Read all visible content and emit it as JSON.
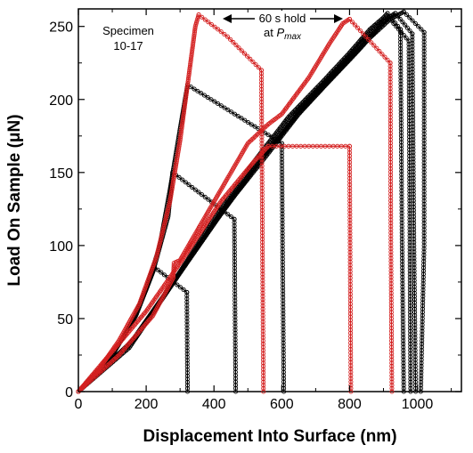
{
  "chart_data": {
    "type": "scatter",
    "title": "",
    "xlabel": "Displacement Into Surface (nm)",
    "ylabel": "Load On Sample (μN)",
    "xlim": [
      0,
      1130
    ],
    "ylim": [
      0,
      262
    ],
    "x_ticks": [
      0,
      200,
      400,
      600,
      800,
      1000
    ],
    "y_ticks": [
      0,
      50,
      100,
      150,
      200,
      250
    ],
    "grid": false,
    "legend": "none",
    "annotations": {
      "specimen_line1": "Specimen",
      "specimen_line2": "10-17",
      "hold_line1": "60 s hold",
      "hold_line2_prefix": "at ",
      "hold_line2_var": "P",
      "hold_line2_sub": "max"
    },
    "colors": {
      "red_series": "#d42020",
      "black_series": "#000000"
    },
    "series": [
      {
        "color": "#d42020",
        "loading": [
          [
            0,
            0
          ],
          [
            60,
            15
          ],
          [
            120,
            35
          ],
          [
            180,
            60
          ],
          [
            230,
            92
          ],
          [
            270,
            130
          ],
          [
            300,
            172
          ],
          [
            325,
            215
          ],
          [
            345,
            250
          ],
          [
            355,
            258
          ]
        ],
        "hold": [
          [
            355,
            258
          ],
          [
            440,
            243
          ],
          [
            540,
            220
          ]
        ],
        "unloading": [
          [
            540,
            220
          ],
          [
            543,
            100
          ],
          [
            546,
            0
          ]
        ]
      },
      {
        "color": "#000000",
        "loading": [
          [
            0,
            0
          ],
          [
            100,
            25
          ],
          [
            160,
            48
          ],
          [
            200,
            70
          ],
          [
            240,
            100
          ],
          [
            270,
            138
          ],
          [
            300,
            180
          ],
          [
            322,
            210
          ]
        ],
        "hold": [
          [
            322,
            210
          ],
          [
            600,
            170
          ]
        ],
        "unloading": [
          [
            600,
            170
          ],
          [
            603,
            80
          ],
          [
            606,
            0
          ]
        ]
      },
      {
        "color": "#000000",
        "loading": [
          [
            0,
            0
          ],
          [
            100,
            25
          ],
          [
            170,
            52
          ],
          [
            220,
            82
          ],
          [
            265,
            120
          ],
          [
            278,
            150
          ]
        ],
        "hold": [
          [
            278,
            150
          ],
          [
            460,
            118
          ]
        ],
        "unloading": [
          [
            460,
            118
          ],
          [
            462,
            60
          ],
          [
            464,
            0
          ]
        ]
      },
      {
        "color": "#000000",
        "loading": [
          [
            0,
            0
          ],
          [
            100,
            25
          ],
          [
            160,
            48
          ],
          [
            200,
            70
          ],
          [
            225,
            85
          ]
        ],
        "hold": [
          [
            225,
            85
          ],
          [
            320,
            68
          ]
        ],
        "unloading": [
          [
            320,
            68
          ],
          [
            321,
            30
          ],
          [
            322,
            0
          ]
        ]
      },
      {
        "color": "#d42020",
        "loading": [
          [
            0,
            0
          ],
          [
            120,
            25
          ],
          [
            220,
            52
          ],
          [
            280,
            78
          ],
          [
            282,
            88
          ],
          [
            300,
            90
          ],
          [
            400,
            130
          ],
          [
            500,
            170
          ],
          [
            560,
            183
          ],
          [
            600,
            190
          ],
          [
            680,
            215
          ],
          [
            740,
            238
          ],
          [
            780,
            252
          ],
          [
            800,
            255
          ]
        ],
        "hold": [
          [
            800,
            255
          ],
          [
            920,
            225
          ]
        ],
        "unloading": [
          [
            920,
            225
          ],
          [
            922,
            100
          ],
          [
            925,
            0
          ]
        ]
      },
      {
        "color": "#d42020",
        "loading": [
          [
            0,
            0
          ],
          [
            200,
            55
          ],
          [
            300,
            88
          ],
          [
            420,
            130
          ],
          [
            520,
            158
          ],
          [
            560,
            168
          ]
        ],
        "hold": [
          [
            560,
            168
          ],
          [
            800,
            168
          ]
        ],
        "unloading": [
          [
            800,
            168
          ],
          [
            802,
            80
          ],
          [
            804,
            0
          ]
        ]
      },
      {
        "color": "#000000",
        "loading": [
          [
            0,
            0
          ],
          [
            150,
            32
          ],
          [
            280,
            75
          ],
          [
            400,
            118
          ],
          [
            520,
            158
          ],
          [
            620,
            188
          ],
          [
            720,
            212
          ],
          [
            800,
            232
          ],
          [
            860,
            248
          ],
          [
            900,
            256
          ],
          [
            912,
            259
          ]
        ],
        "hold": [
          [
            912,
            259
          ],
          [
            950,
            248
          ]
        ],
        "unloading": [
          [
            950,
            248
          ],
          [
            955,
            100
          ],
          [
            960,
            0
          ]
        ]
      },
      {
        "color": "#000000",
        "loading": [
          [
            0,
            0
          ],
          [
            160,
            35
          ],
          [
            300,
            82
          ],
          [
            420,
            122
          ],
          [
            540,
            160
          ],
          [
            640,
            190
          ],
          [
            740,
            215
          ],
          [
            830,
            238
          ],
          [
            900,
            254
          ],
          [
            935,
            259
          ]
        ],
        "hold": [
          [
            935,
            259
          ],
          [
            985,
            245
          ]
        ],
        "unloading": [
          [
            985,
            245
          ],
          [
            990,
            100
          ],
          [
            995,
            0
          ]
        ]
      },
      {
        "color": "#000000",
        "loading": [
          [
            0,
            0
          ],
          [
            170,
            37
          ],
          [
            320,
            88
          ],
          [
            440,
            128
          ],
          [
            560,
            163
          ],
          [
            660,
            193
          ],
          [
            760,
            218
          ],
          [
            850,
            240
          ],
          [
            920,
            255
          ],
          [
            960,
            260
          ]
        ],
        "hold": [
          [
            960,
            260
          ],
          [
            1020,
            246
          ]
        ],
        "unloading": [
          [
            1020,
            246
          ],
          [
            1020,
            100
          ],
          [
            1010,
            0
          ]
        ]
      },
      {
        "color": "#000000",
        "loading": [
          [
            0,
            0
          ],
          [
            150,
            30
          ],
          [
            290,
            78
          ],
          [
            410,
            118
          ],
          [
            530,
            156
          ],
          [
            630,
            185
          ],
          [
            730,
            210
          ],
          [
            820,
            232
          ],
          [
            890,
            250
          ],
          [
            915,
            256
          ]
        ],
        "hold": [
          [
            915,
            256
          ],
          [
            975,
            240
          ]
        ],
        "unloading": [
          [
            975,
            240
          ],
          [
            978,
            100
          ],
          [
            980,
            0
          ]
        ]
      }
    ]
  }
}
